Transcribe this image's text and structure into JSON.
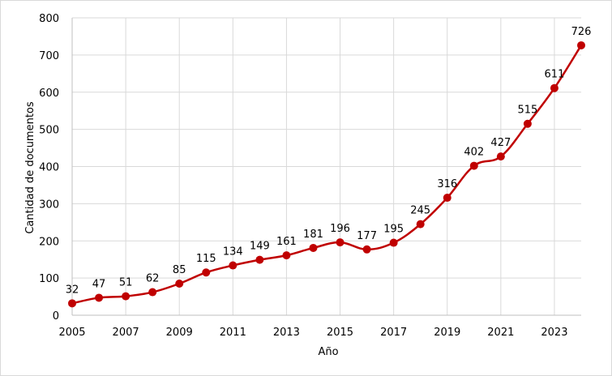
{
  "chart_data": {
    "type": "line",
    "title": "",
    "xlabel": "Año",
    "ylabel": "Cantidad de documentos",
    "x": [
      2005,
      2006,
      2007,
      2008,
      2009,
      2010,
      2011,
      2012,
      2013,
      2014,
      2015,
      2016,
      2017,
      2018,
      2019,
      2020,
      2021,
      2022,
      2023,
      2024
    ],
    "series": [
      {
        "values": [
          32,
          47,
          51,
          62,
          85,
          115,
          134,
          149,
          161,
          181,
          196,
          177,
          195,
          245,
          316,
          402,
          427,
          515,
          611,
          726
        ],
        "color": "#c00000"
      }
    ],
    "x_tick_labels": [
      "2005",
      "2007",
      "2009",
      "2011",
      "2013",
      "2015",
      "2017",
      "2019",
      "2021",
      "2023"
    ],
    "y_tick_labels": [
      "0",
      "100",
      "200",
      "300",
      "400",
      "500",
      "600",
      "700",
      "800"
    ],
    "ylim": [
      0,
      800
    ],
    "grid": true,
    "smooth": true,
    "legend": "none"
  }
}
